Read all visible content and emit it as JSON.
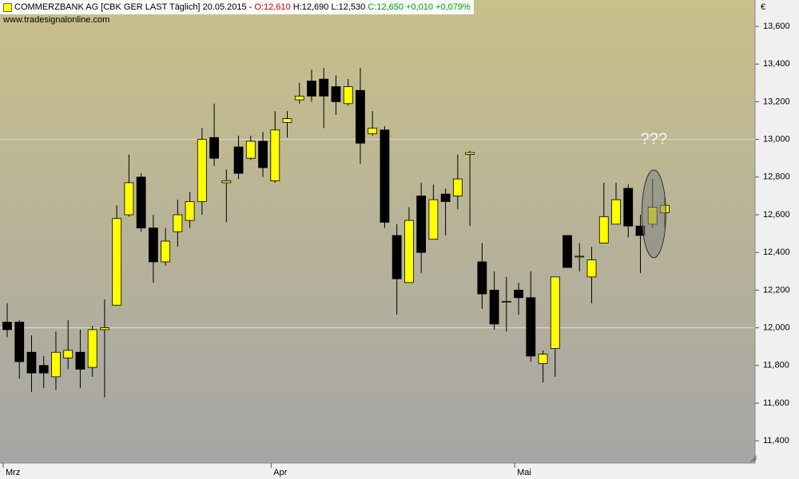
{
  "chart_data": {
    "type": "candlestick",
    "header": {
      "title": "COMMERZBANK AG [CBK GER LAST Täglich] 20.05.2015 -",
      "open_label": "O:12,610",
      "high_label": "H:12,690",
      "low_label": "L:12,530",
      "close_label": "C:12,650",
      "change": "+0,010",
      "change_pct": "+0,079%"
    },
    "source": "www.tradesignalonline.com",
    "currency": "€",
    "annotation": "???",
    "categories": [
      "Mrz",
      null,
      null,
      null,
      null,
      null,
      null,
      null,
      null,
      null,
      null,
      null,
      null,
      null,
      null,
      null,
      null,
      null,
      null,
      null,
      null,
      null,
      "Apr",
      null,
      null,
      null,
      null,
      null,
      null,
      null,
      null,
      null,
      null,
      null,
      null,
      null,
      null,
      null,
      null,
      null,
      null,
      null,
      "Mai",
      null,
      null,
      null,
      null,
      null,
      null,
      null,
      null,
      null,
      null,
      null,
      null
    ],
    "open": [
      12.03,
      12.03,
      11.87,
      11.8,
      11.74,
      11.84,
      11.87,
      11.79,
      11.99,
      12.12,
      12.6,
      12.8,
      12.53,
      12.35,
      12.51,
      12.57,
      12.67,
      13.01,
      12.77,
      12.96,
      12.9,
      12.99,
      12.78,
      13.09,
      13.21,
      13.31,
      13.32,
      13.28,
      13.19,
      13.26,
      13.03,
      13.05,
      12.49,
      12.24,
      12.7,
      12.47,
      12.71,
      12.7,
      12.92,
      12.35,
      12.2,
      12.14,
      12.2,
      12.16,
      11.81,
      11.89,
      12.49,
      12.38,
      12.27,
      12.45,
      12.55,
      12.74,
      12.54,
      12.55,
      12.61
    ],
    "high": [
      12.13,
      12.04,
      11.96,
      11.85,
      11.98,
      12.04,
      11.99,
      12.01,
      12.15,
      12.65,
      12.92,
      12.82,
      12.6,
      12.53,
      12.68,
      12.72,
      13.06,
      13.19,
      12.84,
      13.02,
      13.02,
      13.04,
      13.15,
      13.15,
      13.3,
      13.37,
      13.38,
      13.34,
      13.32,
      13.38,
      13.15,
      13.07,
      12.55,
      12.64,
      12.77,
      12.76,
      12.74,
      12.92,
      12.94,
      12.45,
      12.3,
      12.27,
      12.24,
      12.3,
      11.88,
      12.27,
      12.49,
      12.45,
      12.43,
      12.77,
      12.77,
      12.76,
      12.6,
      12.79,
      12.69
    ],
    "low": [
      11.95,
      11.73,
      11.66,
      11.68,
      11.67,
      11.78,
      11.68,
      11.74,
      11.63,
      12.12,
      12.59,
      12.51,
      12.24,
      12.33,
      12.43,
      12.53,
      12.6,
      12.86,
      12.56,
      12.79,
      12.89,
      12.8,
      12.77,
      13.01,
      13.19,
      13.2,
      13.06,
      13.13,
      13.18,
      12.87,
      13.02,
      12.53,
      12.07,
      12.24,
      12.29,
      12.47,
      12.49,
      12.63,
      12.54,
      12.1,
      11.99,
      11.98,
      12.07,
      11.82,
      11.71,
      11.74,
      12.32,
      12.3,
      12.13,
      12.45,
      12.55,
      12.48,
      12.29,
      12.53,
      12.53
    ],
    "close": [
      11.99,
      11.82,
      11.76,
      11.76,
      11.87,
      11.88,
      11.78,
      11.99,
      12.0,
      12.58,
      12.77,
      12.53,
      12.35,
      12.46,
      12.6,
      12.67,
      13.0,
      12.9,
      12.78,
      12.82,
      12.99,
      12.85,
      13.05,
      13.11,
      13.23,
      13.23,
      13.23,
      13.2,
      13.28,
      12.98,
      13.06,
      12.56,
      12.26,
      12.57,
      12.4,
      12.68,
      12.67,
      12.79,
      12.93,
      12.18,
      12.02,
      12.14,
      12.16,
      11.85,
      11.86,
      12.27,
      12.32,
      12.38,
      12.36,
      12.59,
      12.68,
      12.54,
      12.49,
      12.64,
      12.65
    ],
    "up_color": "#ffff00",
    "down_color": "#000000",
    "ylim": [
      11.282,
      13.74
    ],
    "yticks": [
      {
        "value": 11.4,
        "label": "11,400"
      },
      {
        "value": 11.6,
        "label": "11,600"
      },
      {
        "value": 11.8,
        "label": "11,800"
      },
      {
        "value": 12.0,
        "label": "12,000"
      },
      {
        "value": 12.2,
        "label": "12,200"
      },
      {
        "value": 12.4,
        "label": "12,400"
      },
      {
        "value": 12.6,
        "label": "12,600"
      },
      {
        "value": 12.8,
        "label": "12,800"
      },
      {
        "value": 13.0,
        "label": "13,000"
      },
      {
        "value": 13.2,
        "label": "13,200"
      },
      {
        "value": 13.4,
        "label": "13,400"
      },
      {
        "value": 13.6,
        "label": "13,600"
      }
    ],
    "gridlines": [
      12,
      13
    ]
  }
}
